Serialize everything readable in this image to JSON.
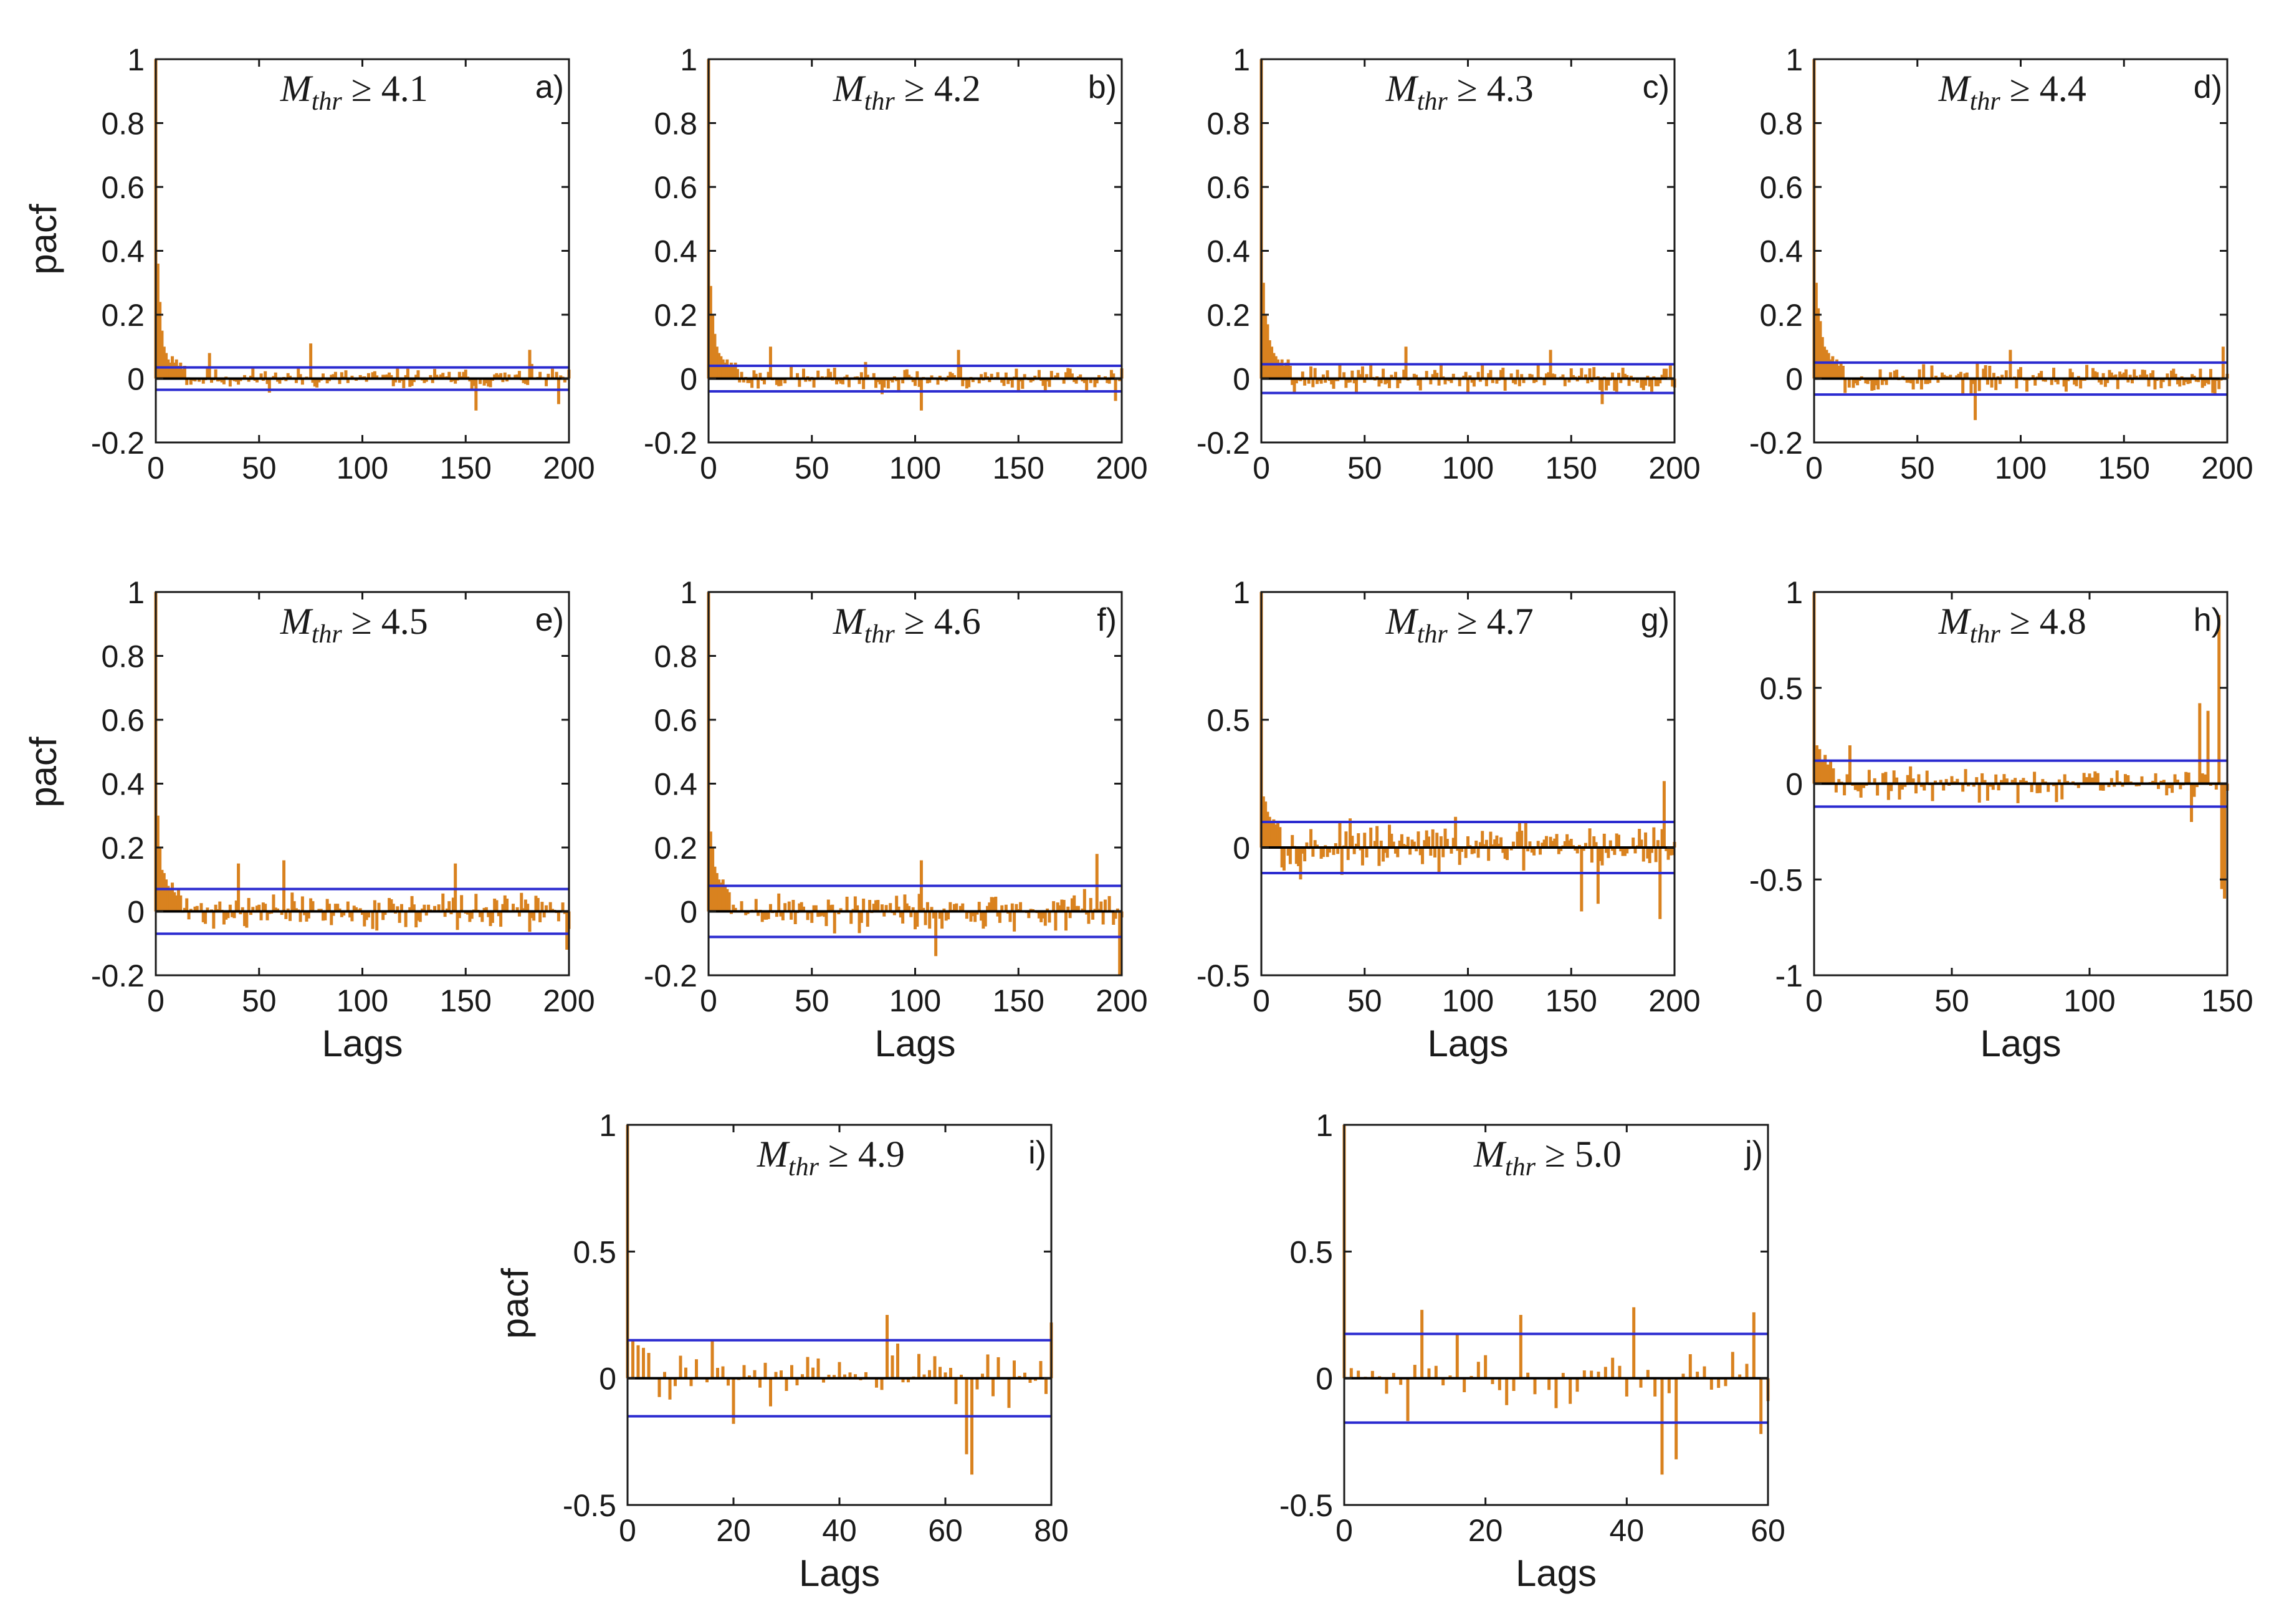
{
  "colors": {
    "stem": "#d9821f",
    "bound": "#2b2bd0",
    "zero": "#000000",
    "text": "#1a1a1a"
  },
  "chart_data": [
    {
      "id": "a",
      "type": "bar",
      "panel_label": "a)",
      "title_prefix": "M",
      "title_subscript": "thr",
      "title_rest": " ≥ 4.1",
      "xlabel": "",
      "ylabel": "pacf",
      "xlim": [
        0,
        200
      ],
      "ylim": [
        -0.2,
        1
      ],
      "xticks": [
        {
          "value": 0,
          "label": "0"
        },
        {
          "value": 50,
          "label": "50"
        },
        {
          "value": 100,
          "label": "100"
        },
        {
          "value": 150,
          "label": "150"
        },
        {
          "value": 200,
          "label": "200"
        }
      ],
      "yticks": [
        {
          "value": -0.2,
          "label": "-0.2"
        },
        {
          "value": 0,
          "label": "0"
        },
        {
          "value": 0.2,
          "label": "0.2"
        },
        {
          "value": 0.4,
          "label": "0.4"
        },
        {
          "value": 0.6,
          "label": "0.6"
        },
        {
          "value": 0.8,
          "label": "0.8"
        },
        {
          "value": 1,
          "label": "1"
        }
      ],
      "confidence_bound": 0.035,
      "nlags": 200,
      "head": [
        1,
        0.36,
        0.24,
        0.15,
        0.1,
        0.08,
        0.06,
        0.05,
        0.07,
        0.05,
        0.06,
        0.04,
        0.05,
        0.03,
        0.04
      ],
      "noise_amp": 0.03,
      "seed": 11,
      "spikes": [
        {
          "lag": 26,
          "value": 0.08
        },
        {
          "lag": 75,
          "value": 0.11
        },
        {
          "lag": 155,
          "value": -0.1
        },
        {
          "lag": 181,
          "value": 0.09
        },
        {
          "lag": 195,
          "value": -0.08
        }
      ]
    },
    {
      "id": "b",
      "type": "bar",
      "panel_label": "b)",
      "title_prefix": "M",
      "title_subscript": "thr",
      "title_rest": " ≥ 4.2",
      "xlabel": "",
      "ylabel": "",
      "xlim": [
        0,
        200
      ],
      "ylim": [
        -0.2,
        1
      ],
      "xticks": [
        {
          "value": 0,
          "label": "0"
        },
        {
          "value": 50,
          "label": "50"
        },
        {
          "value": 100,
          "label": "100"
        },
        {
          "value": 150,
          "label": "150"
        },
        {
          "value": 200,
          "label": "200"
        }
      ],
      "yticks": [
        {
          "value": -0.2,
          "label": "-0.2"
        },
        {
          "value": 0,
          "label": "0"
        },
        {
          "value": 0.2,
          "label": "0.2"
        },
        {
          "value": 0.4,
          "label": "0.4"
        },
        {
          "value": 0.6,
          "label": "0.6"
        },
        {
          "value": 0.8,
          "label": "0.8"
        },
        {
          "value": 1,
          "label": "1"
        }
      ],
      "confidence_bound": 0.04,
      "nlags": 200,
      "head": [
        1,
        0.29,
        0.2,
        0.14,
        0.1,
        0.08,
        0.07,
        0.06,
        0.05,
        0.06,
        0.04,
        0.05,
        0.04,
        0.05,
        0.03
      ],
      "noise_amp": 0.035,
      "seed": 23,
      "spikes": [
        {
          "lag": 30,
          "value": 0.1
        },
        {
          "lag": 103,
          "value": -0.1
        },
        {
          "lag": 121,
          "value": 0.09
        },
        {
          "lag": 197,
          "value": -0.07
        }
      ]
    },
    {
      "id": "c",
      "type": "bar",
      "panel_label": "c)",
      "title_prefix": "M",
      "title_subscript": "thr",
      "title_rest": " ≥ 4.3",
      "xlabel": "",
      "ylabel": "",
      "xlim": [
        0,
        200
      ],
      "ylim": [
        -0.2,
        1
      ],
      "xticks": [
        {
          "value": 0,
          "label": "0"
        },
        {
          "value": 50,
          "label": "50"
        },
        {
          "value": 100,
          "label": "100"
        },
        {
          "value": 150,
          "label": "150"
        },
        {
          "value": 200,
          "label": "200"
        }
      ],
      "yticks": [
        {
          "value": -0.2,
          "label": "-0.2"
        },
        {
          "value": 0,
          "label": "0"
        },
        {
          "value": 0.2,
          "label": "0.2"
        },
        {
          "value": 0.4,
          "label": "0.4"
        },
        {
          "value": 0.6,
          "label": "0.6"
        },
        {
          "value": 0.8,
          "label": "0.8"
        },
        {
          "value": 1,
          "label": "1"
        }
      ],
      "confidence_bound": 0.045,
      "nlags": 200,
      "head": [
        1,
        0.3,
        0.2,
        0.17,
        0.12,
        0.1,
        0.08,
        0.07,
        0.06,
        0.05,
        0.06,
        0.04,
        0.05,
        0.06,
        0.04
      ],
      "noise_amp": 0.04,
      "seed": 37,
      "spikes": [
        {
          "lag": 70,
          "value": 0.1
        },
        {
          "lag": 140,
          "value": 0.09
        },
        {
          "lag": 165,
          "value": -0.08
        }
      ]
    },
    {
      "id": "d",
      "type": "bar",
      "panel_label": "d)",
      "title_prefix": "M",
      "title_subscript": "thr",
      "title_rest": " ≥ 4.4",
      "xlabel": "",
      "ylabel": "",
      "xlim": [
        0,
        200
      ],
      "ylim": [
        -0.2,
        1
      ],
      "xticks": [
        {
          "value": 0,
          "label": "0"
        },
        {
          "value": 50,
          "label": "50"
        },
        {
          "value": 100,
          "label": "100"
        },
        {
          "value": 150,
          "label": "150"
        },
        {
          "value": 200,
          "label": "200"
        }
      ],
      "yticks": [
        {
          "value": -0.2,
          "label": "-0.2"
        },
        {
          "value": 0,
          "label": "0"
        },
        {
          "value": 0.2,
          "label": "0.2"
        },
        {
          "value": 0.4,
          "label": "0.4"
        },
        {
          "value": 0.6,
          "label": "0.6"
        },
        {
          "value": 0.8,
          "label": "0.8"
        },
        {
          "value": 1,
          "label": "1"
        }
      ],
      "confidence_bound": 0.05,
      "nlags": 200,
      "head": [
        1,
        0.3,
        0.22,
        0.18,
        0.13,
        0.1,
        0.09,
        0.08,
        0.06,
        0.07,
        0.05,
        0.06,
        0.04,
        0.05,
        0.04
      ],
      "noise_amp": 0.04,
      "seed": 53,
      "spikes": [
        {
          "lag": 78,
          "value": -0.13
        },
        {
          "lag": 95,
          "value": 0.09
        },
        {
          "lag": 198,
          "value": 0.1
        }
      ]
    },
    {
      "id": "e",
      "type": "bar",
      "panel_label": "e)",
      "title_prefix": "M",
      "title_subscript": "thr",
      "title_rest": " ≥ 4.5",
      "xlabel": "Lags",
      "ylabel": "pacf",
      "xlim": [
        0,
        200
      ],
      "ylim": [
        -0.2,
        1
      ],
      "xticks": [
        {
          "value": 0,
          "label": "0"
        },
        {
          "value": 50,
          "label": "50"
        },
        {
          "value": 100,
          "label": "100"
        },
        {
          "value": 150,
          "label": "150"
        },
        {
          "value": 200,
          "label": "200"
        }
      ],
      "yticks": [
        {
          "value": -0.2,
          "label": "-0.2"
        },
        {
          "value": 0,
          "label": "0"
        },
        {
          "value": 0.2,
          "label": "0.2"
        },
        {
          "value": 0.4,
          "label": "0.4"
        },
        {
          "value": 0.6,
          "label": "0.6"
        },
        {
          "value": 0.8,
          "label": "0.8"
        },
        {
          "value": 1,
          "label": "1"
        }
      ],
      "confidence_bound": 0.07,
      "nlags": 200,
      "head": [
        1,
        0.3,
        0.2,
        0.13,
        0.12,
        0.1,
        0.08,
        0.07,
        0.09,
        0.06,
        0.05,
        0.07,
        0.05
      ],
      "noise_amp": 0.05,
      "seed": 71,
      "spikes": [
        {
          "lag": 40,
          "value": 0.15
        },
        {
          "lag": 62,
          "value": 0.16
        },
        {
          "lag": 145,
          "value": 0.15
        },
        {
          "lag": 199,
          "value": -0.12
        }
      ]
    },
    {
      "id": "f",
      "type": "bar",
      "panel_label": "f)",
      "title_prefix": "M",
      "title_subscript": "thr",
      "title_rest": " ≥ 4.6",
      "xlabel": "Lags",
      "ylabel": "",
      "xlim": [
        0,
        200
      ],
      "ylim": [
        -0.2,
        1
      ],
      "xticks": [
        {
          "value": 0,
          "label": "0"
        },
        {
          "value": 50,
          "label": "50"
        },
        {
          "value": 100,
          "label": "100"
        },
        {
          "value": 150,
          "label": "150"
        },
        {
          "value": 200,
          "label": "200"
        }
      ],
      "yticks": [
        {
          "value": -0.2,
          "label": "-0.2"
        },
        {
          "value": 0,
          "label": "0"
        },
        {
          "value": 0.2,
          "label": "0.2"
        },
        {
          "value": 0.4,
          "label": "0.4"
        },
        {
          "value": 0.6,
          "label": "0.6"
        },
        {
          "value": 0.8,
          "label": "0.8"
        },
        {
          "value": 1,
          "label": "1"
        }
      ],
      "confidence_bound": 0.08,
      "nlags": 200,
      "head": [
        1,
        0.25,
        0.2,
        0.14,
        0.12,
        0.1,
        0.09,
        0.1,
        0.08,
        0.07,
        0.06
      ],
      "noise_amp": 0.06,
      "seed": 89,
      "spikes": [
        {
          "lag": 103,
          "value": 0.16
        },
        {
          "lag": 110,
          "value": -0.14
        },
        {
          "lag": 188,
          "value": 0.18
        },
        {
          "lag": 199,
          "value": -0.2
        }
      ]
    },
    {
      "id": "g",
      "type": "bar",
      "panel_label": "g)",
      "title_prefix": "M",
      "title_subscript": "thr",
      "title_rest": " ≥ 4.7",
      "xlabel": "Lags",
      "ylabel": "",
      "xlim": [
        0,
        200
      ],
      "ylim": [
        -0.5,
        1
      ],
      "xticks": [
        {
          "value": 0,
          "label": "0"
        },
        {
          "value": 50,
          "label": "50"
        },
        {
          "value": 100,
          "label": "100"
        },
        {
          "value": 150,
          "label": "150"
        },
        {
          "value": 200,
          "label": "200"
        }
      ],
      "yticks": [
        {
          "value": -0.5,
          "label": "-0.5"
        },
        {
          "value": 0,
          "label": "0"
        },
        {
          "value": 0.5,
          "label": "0.5"
        },
        {
          "value": 1,
          "label": "1"
        }
      ],
      "confidence_bound": 0.1,
      "nlags": 200,
      "head": [
        1,
        0.2,
        0.18,
        0.14,
        0.12,
        0.1,
        0.11,
        0.09,
        0.1,
        0.08
      ],
      "noise_amp": 0.08,
      "seed": 97,
      "spikes": [
        {
          "lag": 155,
          "value": -0.25
        },
        {
          "lag": 163,
          "value": -0.22
        },
        {
          "lag": 195,
          "value": 0.26
        },
        {
          "lag": 193,
          "value": -0.28
        }
      ]
    },
    {
      "id": "h",
      "type": "bar",
      "panel_label": "h)",
      "title_prefix": "M",
      "title_subscript": "thr",
      "title_rest": " ≥ 4.8",
      "xlabel": "Lags",
      "ylabel": "",
      "xlim": [
        0,
        150
      ],
      "ylim": [
        -1,
        1
      ],
      "xticks": [
        {
          "value": 0,
          "label": "0"
        },
        {
          "value": 50,
          "label": "50"
        },
        {
          "value": 100,
          "label": "100"
        },
        {
          "value": 150,
          "label": "150"
        }
      ],
      "yticks": [
        {
          "value": -1,
          "label": "-1"
        },
        {
          "value": -0.5,
          "label": "-0.5"
        },
        {
          "value": 0,
          "label": "0"
        },
        {
          "value": 0.5,
          "label": "0.5"
        },
        {
          "value": 1,
          "label": "1"
        }
      ],
      "confidence_bound": 0.12,
      "nlags": 150,
      "head": [
        1,
        0.2,
        0.18,
        0.12,
        0.15,
        0.1,
        0.12,
        0.08
      ],
      "noise_amp": 0.08,
      "seed": 131,
      "spikes": [
        {
          "lag": 13,
          "value": 0.2
        },
        {
          "lag": 140,
          "value": 0.42
        },
        {
          "lag": 143,
          "value": 0.38
        },
        {
          "lag": 147,
          "value": 0.88
        },
        {
          "lag": 148,
          "value": -0.55
        },
        {
          "lag": 149,
          "value": -0.6
        },
        {
          "lag": 137,
          "value": -0.2
        }
      ]
    },
    {
      "id": "i",
      "type": "bar",
      "panel_label": "i)",
      "title_prefix": "M",
      "title_subscript": "thr",
      "title_rest": " ≥ 4.9",
      "xlabel": "Lags",
      "ylabel": "pacf",
      "xlim": [
        0,
        80
      ],
      "ylim": [
        -0.5,
        1
      ],
      "xticks": [
        {
          "value": 0,
          "label": "0"
        },
        {
          "value": 20,
          "label": "20"
        },
        {
          "value": 40,
          "label": "40"
        },
        {
          "value": 60,
          "label": "60"
        },
        {
          "value": 80,
          "label": "80"
        }
      ],
      "yticks": [
        {
          "value": -0.5,
          "label": "-0.5"
        },
        {
          "value": 0,
          "label": "0"
        },
        {
          "value": 0.5,
          "label": "0.5"
        },
        {
          "value": 1,
          "label": "1"
        }
      ],
      "confidence_bound": 0.15,
      "nlags": 80,
      "head": [
        1,
        0.15,
        0.13,
        0.12,
        0.1
      ],
      "noise_amp": 0.1,
      "seed": 151,
      "spikes": [
        {
          "lag": 20,
          "value": -0.18
        },
        {
          "lag": 49,
          "value": 0.25
        },
        {
          "lag": 65,
          "value": -0.38
        },
        {
          "lag": 64,
          "value": -0.3
        },
        {
          "lag": 80,
          "value": 0.22
        }
      ]
    },
    {
      "id": "j",
      "type": "bar",
      "panel_label": "j)",
      "title_prefix": "M",
      "title_subscript": "thr",
      "title_rest": " ≥ 5.0",
      "xlabel": "Lags",
      "ylabel": "",
      "xlim": [
        0,
        60
      ],
      "ylim": [
        -0.5,
        1
      ],
      "xticks": [
        {
          "value": 0,
          "label": "0"
        },
        {
          "value": 20,
          "label": "20"
        },
        {
          "value": 40,
          "label": "40"
        },
        {
          "value": 60,
          "label": "60"
        }
      ],
      "yticks": [
        {
          "value": -0.5,
          "label": "-0.5"
        },
        {
          "value": 0,
          "label": "0"
        },
        {
          "value": 0.5,
          "label": "0.5"
        },
        {
          "value": 1,
          "label": "1"
        }
      ],
      "confidence_bound": 0.175,
      "nlags": 60,
      "head": [
        1,
        0.04,
        0.03
      ],
      "noise_amp": 0.12,
      "seed": 173,
      "spikes": [
        {
          "lag": 11,
          "value": 0.27
        },
        {
          "lag": 25,
          "value": 0.25
        },
        {
          "lag": 41,
          "value": 0.28
        },
        {
          "lag": 45,
          "value": -0.38
        },
        {
          "lag": 47,
          "value": -0.32
        },
        {
          "lag": 58,
          "value": 0.26
        },
        {
          "lag": 59,
          "value": -0.22
        }
      ]
    }
  ]
}
